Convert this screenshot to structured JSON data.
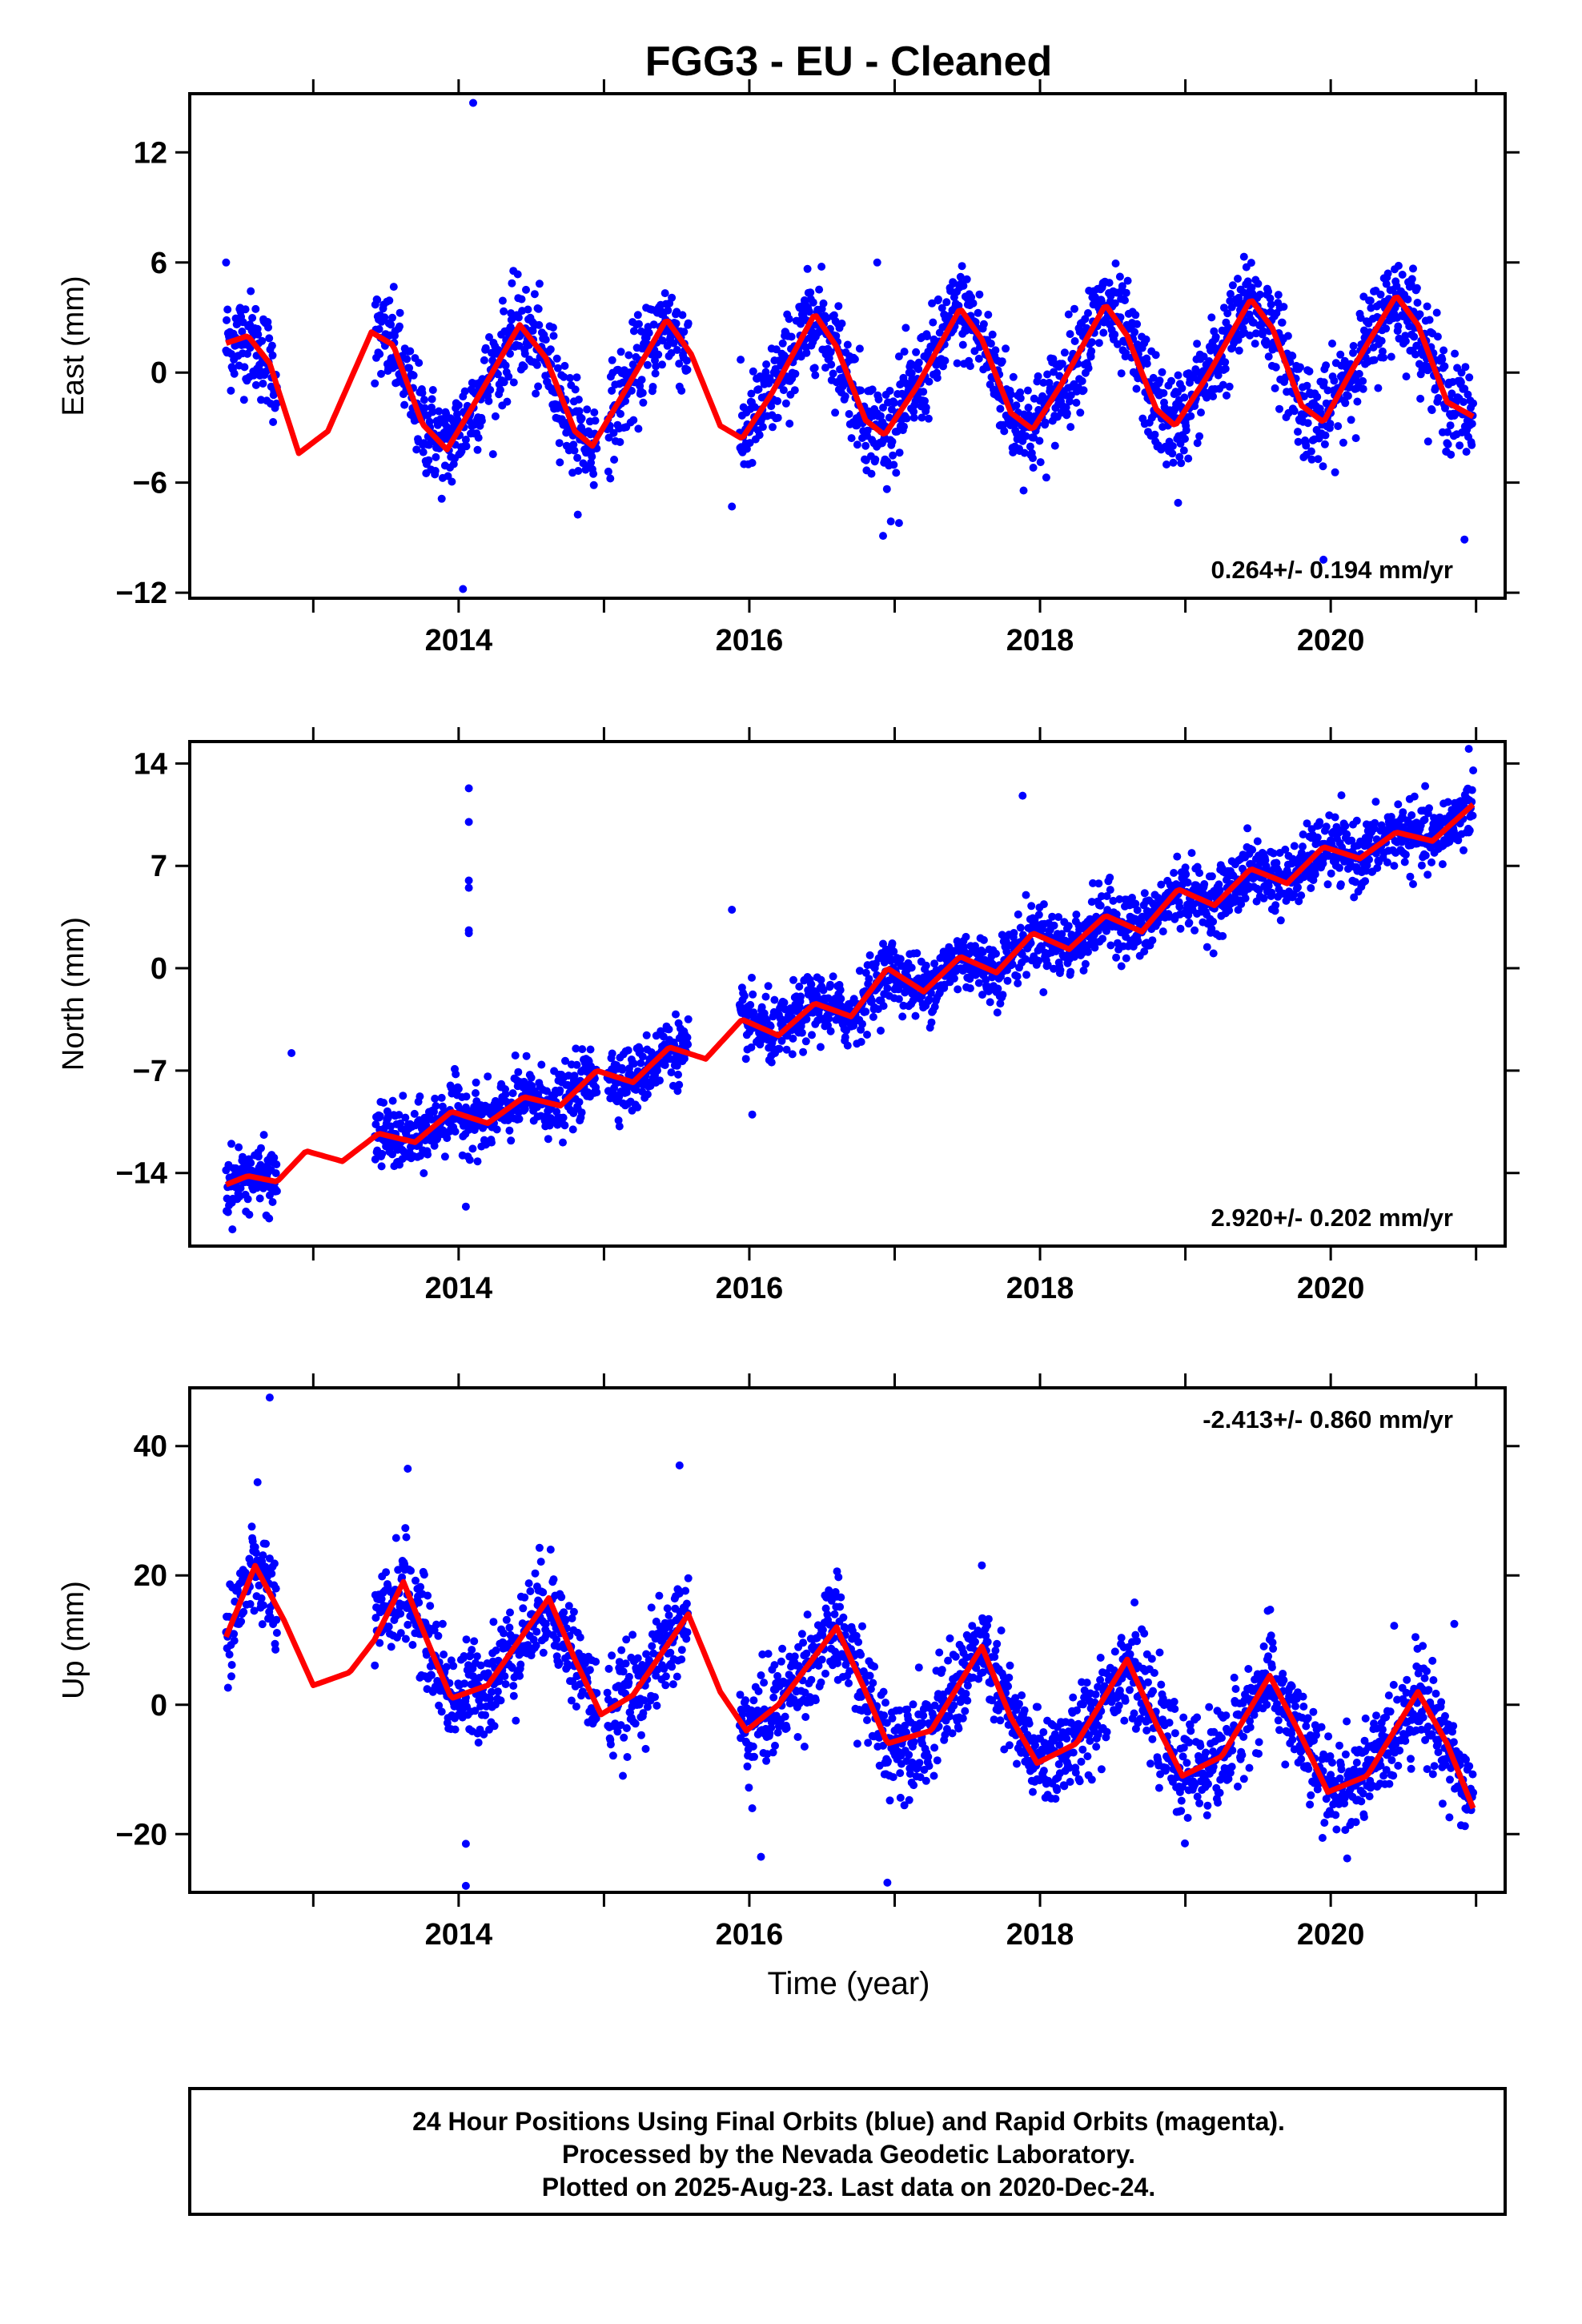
{
  "title": "FGG3  - EU - Cleaned",
  "xlabel": "Time (year)",
  "footer": {
    "line1": "24 Hour Positions Using Final Orbits (blue) and Rapid Orbits (magenta).",
    "line2": "Processed by the Nevada Geodetic Laboratory.",
    "line3": "Plotted on 2025-Aug-23. Last data on 2020-Dec-24."
  },
  "colors": {
    "points": "#0000ff",
    "model": "#ff0000",
    "frame": "#000000"
  },
  "chart_data": [
    {
      "type": "scatter",
      "component": "east",
      "ylabel": "East (mm)",
      "rate": "0.264+/- 0.194 mm/yr",
      "xlim": [
        2012.15,
        2021.2
      ],
      "ylim": [
        -12.3,
        15.2
      ],
      "yticks": [
        -12,
        -6,
        0,
        6,
        12
      ],
      "yticklabels": [
        "−12",
        "−6",
        "0",
        "6",
        "12"
      ],
      "xticks": [
        2014,
        2016,
        2018,
        2020
      ],
      "xticklabels": [
        "2014",
        "2016",
        "2018",
        "2020"
      ],
      "data_span": [
        2012.4,
        2020.98
      ],
      "data_gaps": [
        [
          2012.75,
          2013.42
        ],
        [
          2014.95,
          2015.02
        ],
        [
          2015.58,
          2015.93
        ]
      ],
      "model_curve": [
        [
          2012.4,
          1.6
        ],
        [
          2012.55,
          2.0
        ],
        [
          2012.7,
          0.5
        ],
        [
          2012.9,
          -4.4
        ],
        [
          2013.1,
          -3.2
        ],
        [
          2013.4,
          2.2
        ],
        [
          2013.55,
          1.5
        ],
        [
          2013.75,
          -2.8
        ],
        [
          2013.92,
          -4.2
        ],
        [
          2014.1,
          -1.8
        ],
        [
          2014.42,
          2.6
        ],
        [
          2014.6,
          0.8
        ],
        [
          2014.8,
          -3.2
        ],
        [
          2014.92,
          -4.0
        ],
        [
          2015.1,
          -1.6
        ],
        [
          2015.43,
          2.9
        ],
        [
          2015.6,
          1.0
        ],
        [
          2015.8,
          -2.9
        ],
        [
          2015.95,
          -3.6
        ],
        [
          2016.15,
          -1.2
        ],
        [
          2016.45,
          3.2
        ],
        [
          2016.6,
          1.4
        ],
        [
          2016.8,
          -2.6
        ],
        [
          2016.93,
          -3.4
        ],
        [
          2017.15,
          -0.8
        ],
        [
          2017.45,
          3.5
        ],
        [
          2017.6,
          1.8
        ],
        [
          2017.8,
          -2.2
        ],
        [
          2017.95,
          -3.1
        ],
        [
          2018.15,
          -0.6
        ],
        [
          2018.45,
          3.7
        ],
        [
          2018.6,
          2.0
        ],
        [
          2018.8,
          -2.0
        ],
        [
          2018.93,
          -2.9
        ],
        [
          2019.15,
          -0.2
        ],
        [
          2019.45,
          4.0
        ],
        [
          2019.6,
          2.4
        ],
        [
          2019.8,
          -1.8
        ],
        [
          2019.95,
          -2.7
        ],
        [
          2020.15,
          0.2
        ],
        [
          2020.45,
          4.2
        ],
        [
          2020.6,
          2.6
        ],
        [
          2020.8,
          -1.6
        ],
        [
          2020.98,
          -2.4
        ]
      ],
      "scatter_sd": 1.3,
      "outliers": [
        [
          2014.1,
          14.7
        ],
        [
          2014.03,
          -11.8
        ],
        [
          2015.88,
          -7.3
        ],
        [
          2016.92,
          -8.9
        ],
        [
          2018.95,
          -7.1
        ],
        [
          2019.95,
          -10.2
        ],
        [
          2020.92,
          -9.1
        ],
        [
          2016.88,
          6.0
        ],
        [
          2017.03,
          -8.2
        ],
        [
          2012.4,
          6.0
        ]
      ]
    },
    {
      "type": "scatter",
      "component": "north",
      "ylabel": "North (mm)",
      "rate": "2.920+/- 0.202 mm/yr",
      "xlim": [
        2012.15,
        2021.2
      ],
      "ylim": [
        -19.0,
        15.5
      ],
      "yticks": [
        -14,
        -7,
        0,
        7,
        14
      ],
      "yticklabels": [
        "−14",
        "−7",
        "0",
        "7",
        "14"
      ],
      "xticks": [
        2014,
        2016,
        2018,
        2020
      ],
      "xticklabels": [
        "2014",
        "2016",
        "2018",
        "2020"
      ],
      "data_span": [
        2012.4,
        2020.98
      ],
      "data_gaps": [
        [
          2012.75,
          2013.42
        ],
        [
          2014.95,
          2015.02
        ],
        [
          2015.58,
          2015.93
        ]
      ],
      "model_curve": [
        [
          2012.4,
          -14.8
        ],
        [
          2012.55,
          -14.2
        ],
        [
          2012.75,
          -14.6
        ],
        [
          2012.95,
          -12.5
        ],
        [
          2013.2,
          -13.2
        ],
        [
          2013.45,
          -11.3
        ],
        [
          2013.7,
          -11.9
        ],
        [
          2013.95,
          -9.8
        ],
        [
          2014.2,
          -10.6
        ],
        [
          2014.45,
          -8.8
        ],
        [
          2014.7,
          -9.4
        ],
        [
          2014.95,
          -7.0
        ],
        [
          2015.2,
          -7.8
        ],
        [
          2015.45,
          -5.4
        ],
        [
          2015.7,
          -6.2
        ],
        [
          2015.95,
          -3.5
        ],
        [
          2016.2,
          -4.6
        ],
        [
          2016.45,
          -2.4
        ],
        [
          2016.7,
          -3.3
        ],
        [
          2016.95,
          0.0
        ],
        [
          2017.2,
          -1.6
        ],
        [
          2017.45,
          0.8
        ],
        [
          2017.7,
          -0.3
        ],
        [
          2017.95,
          2.4
        ],
        [
          2018.2,
          1.3
        ],
        [
          2018.45,
          3.6
        ],
        [
          2018.7,
          2.5
        ],
        [
          2018.95,
          5.4
        ],
        [
          2019.2,
          4.3
        ],
        [
          2019.45,
          6.8
        ],
        [
          2019.7,
          5.8
        ],
        [
          2019.95,
          8.3
        ],
        [
          2020.2,
          7.5
        ],
        [
          2020.45,
          9.3
        ],
        [
          2020.7,
          8.7
        ],
        [
          2020.98,
          11.2
        ]
      ],
      "scatter_sd": 1.1,
      "outliers": [
        [
          2014.07,
          12.3
        ],
        [
          2014.07,
          10.0
        ],
        [
          2014.07,
          6.0
        ],
        [
          2014.07,
          5.5
        ],
        [
          2014.07,
          2.6
        ],
        [
          2014.07,
          2.4
        ],
        [
          2012.85,
          -5.8
        ],
        [
          2014.05,
          -16.3
        ],
        [
          2015.88,
          4.0
        ],
        [
          2017.88,
          11.8
        ],
        [
          2020.95,
          15.0
        ],
        [
          2016.02,
          -10.0
        ]
      ]
    },
    {
      "type": "scatter",
      "component": "up",
      "ylabel": "Up (mm)",
      "rate": "-2.413+/- 0.860 mm/yr",
      "xlim": [
        2012.15,
        2021.2
      ],
      "ylim": [
        -29.0,
        49.0
      ],
      "yticks": [
        -20,
        0,
        20,
        40
      ],
      "yticklabels": [
        "−20",
        "0",
        "20",
        "40"
      ],
      "xticks": [
        2014,
        2016,
        2018,
        2020
      ],
      "xticklabels": [
        "2014",
        "2016",
        "2018",
        "2020"
      ],
      "data_span": [
        2012.4,
        2020.98
      ],
      "data_gaps": [
        [
          2012.75,
          2013.42
        ],
        [
          2014.95,
          2015.02
        ],
        [
          2015.58,
          2015.93
        ]
      ],
      "model_curve": [
        [
          2012.4,
          10.5
        ],
        [
          2012.6,
          21.5
        ],
        [
          2012.8,
          13.0
        ],
        [
          2013.0,
          3.0
        ],
        [
          2013.25,
          5.0
        ],
        [
          2013.42,
          10.0
        ],
        [
          2013.62,
          19.0
        ],
        [
          2013.8,
          9.0
        ],
        [
          2013.95,
          1.0
        ],
        [
          2014.2,
          3.0
        ],
        [
          2014.62,
          16.5
        ],
        [
          2014.8,
          7.0
        ],
        [
          2014.98,
          -1.5
        ],
        [
          2015.2,
          1.5
        ],
        [
          2015.58,
          14.0
        ],
        [
          2015.8,
          2.0
        ],
        [
          2015.98,
          -4.0
        ],
        [
          2016.2,
          0.0
        ],
        [
          2016.6,
          12.0
        ],
        [
          2016.8,
          2.0
        ],
        [
          2016.95,
          -6.0
        ],
        [
          2017.25,
          -4.0
        ],
        [
          2017.6,
          9.0
        ],
        [
          2017.8,
          -2.0
        ],
        [
          2017.98,
          -9.0
        ],
        [
          2018.25,
          -6.0
        ],
        [
          2018.6,
          7.0
        ],
        [
          2018.8,
          -3.0
        ],
        [
          2018.98,
          -11.0
        ],
        [
          2019.25,
          -8.0
        ],
        [
          2019.58,
          4.5
        ],
        [
          2019.8,
          -5.0
        ],
        [
          2019.98,
          -13.5
        ],
        [
          2020.25,
          -11.0
        ],
        [
          2020.6,
          2.0
        ],
        [
          2020.8,
          -6.0
        ],
        [
          2020.98,
          -16.0
        ]
      ],
      "scatter_sd": 3.8,
      "outliers": [
        [
          2012.7,
          47.5
        ],
        [
          2013.65,
          36.5
        ],
        [
          2015.52,
          37.0
        ],
        [
          2014.05,
          -21.5
        ],
        [
          2014.05,
          -28.0
        ],
        [
          2016.08,
          -23.5
        ],
        [
          2016.95,
          -27.5
        ],
        [
          2016.02,
          -16.0
        ],
        [
          2020.85,
          12.5
        ]
      ]
    }
  ]
}
